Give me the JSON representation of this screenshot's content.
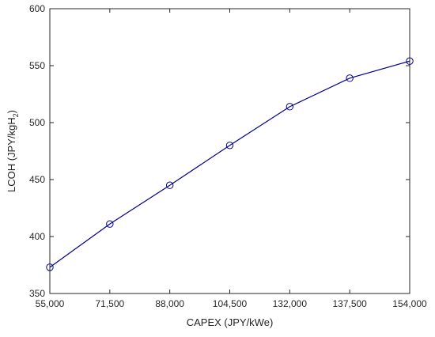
{
  "chart_data": {
    "type": "line",
    "title": "",
    "xlabel": "CAPEX (JPY/kWe)",
    "ylabel_main": "LCOH (JPY/kgH",
    "ylabel_sub": "2",
    "ylabel_close": ")",
    "categories": [
      "55,000",
      "71,500",
      "88,000",
      "104,500",
      "132,000",
      "137,500",
      "154,000"
    ],
    "series": [
      {
        "values": [
          373,
          411,
          445,
          480,
          514,
          539,
          554
        ]
      }
    ],
    "ylim": [
      350,
      600
    ],
    "yticks": [
      350,
      400,
      450,
      500,
      550,
      600
    ],
    "grid": false,
    "color": "#00008B",
    "marker": "circle"
  }
}
